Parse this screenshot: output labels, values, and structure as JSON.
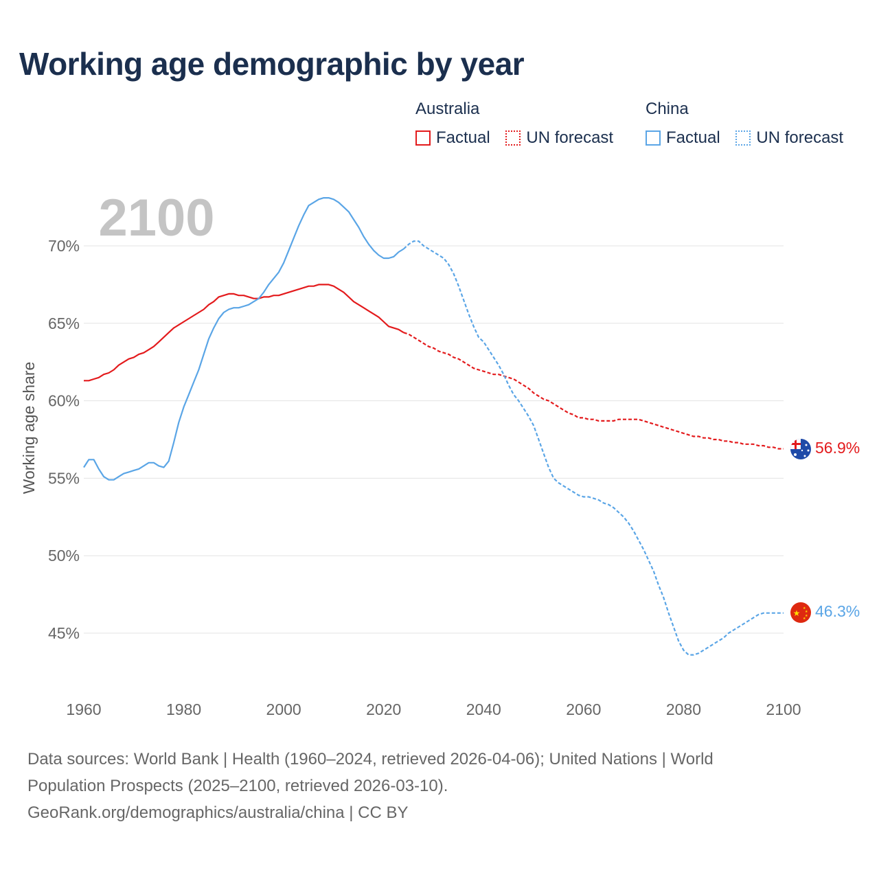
{
  "title": "Working age demographic by year",
  "legend": {
    "groups": [
      {
        "name": "Australia",
        "factual_label": "Factual",
        "forecast_label": "UN forecast",
        "color": "#e31a1c"
      },
      {
        "name": "China",
        "factual_label": "Factual",
        "forecast_label": "UN forecast",
        "color": "#5aa5e6"
      }
    ]
  },
  "footer": {
    "line1": "Data sources: World Bank | Health (1960–2024, retrieved 2026-04-06); United Nations | World",
    "line2": "Population Prospects (2025–2100, retrieved 2026-03-10).",
    "line3": "GeoRank.org/demographics/australia/china | CC BY"
  },
  "chart_data": {
    "type": "line",
    "year_watermark": "2100",
    "ylabel": "Working age share",
    "xlabel": "",
    "xlim": [
      1960,
      2100
    ],
    "ylim": [
      41,
      73.5
    ],
    "x_ticks": [
      1960,
      1980,
      2000,
      2020,
      2040,
      2060,
      2080,
      2100
    ],
    "x_tick_labels": [
      "1960",
      "1980",
      "2000",
      "2020",
      "2040",
      "2060",
      "2080",
      "2100"
    ],
    "y_ticks": [
      45,
      50,
      55,
      60,
      65,
      70
    ],
    "y_tick_labels": [
      "45%",
      "50%",
      "55%",
      "60%",
      "65%",
      "70%"
    ],
    "grid": true,
    "series": [
      {
        "name": "Australia",
        "color": "#e31a1c",
        "end_label": "56.9%",
        "flag": "australia-flag",
        "factual": {
          "x": [
            1960,
            1961,
            1962,
            1963,
            1964,
            1965,
            1966,
            1967,
            1968,
            1969,
            1970,
            1971,
            1972,
            1973,
            1974,
            1975,
            1976,
            1977,
            1978,
            1979,
            1980,
            1981,
            1982,
            1983,
            1984,
            1985,
            1986,
            1987,
            1988,
            1989,
            1990,
            1991,
            1992,
            1993,
            1994,
            1995,
            1996,
            1997,
            1998,
            1999,
            2000,
            2001,
            2002,
            2003,
            2004,
            2005,
            2006,
            2007,
            2008,
            2009,
            2010,
            2011,
            2012,
            2013,
            2014,
            2015,
            2016,
            2017,
            2018,
            2019,
            2020,
            2021,
            2022,
            2023,
            2024
          ],
          "y": [
            61.3,
            61.3,
            61.4,
            61.5,
            61.7,
            61.8,
            62.0,
            62.3,
            62.5,
            62.7,
            62.8,
            63.0,
            63.1,
            63.3,
            63.5,
            63.8,
            64.1,
            64.4,
            64.7,
            64.9,
            65.1,
            65.3,
            65.5,
            65.7,
            65.9,
            66.2,
            66.4,
            66.7,
            66.8,
            66.9,
            66.9,
            66.8,
            66.8,
            66.7,
            66.6,
            66.6,
            66.7,
            66.7,
            66.8,
            66.8,
            66.9,
            67.0,
            67.1,
            67.2,
            67.3,
            67.4,
            67.4,
            67.5,
            67.5,
            67.5,
            67.4,
            67.2,
            67.0,
            66.7,
            66.4,
            66.2,
            66.0,
            65.8,
            65.6,
            65.4,
            65.1,
            64.8,
            64.7,
            64.6,
            64.4
          ]
        },
        "forecast": {
          "x": [
            2024,
            2025,
            2026,
            2027,
            2028,
            2029,
            2030,
            2031,
            2032,
            2033,
            2034,
            2035,
            2036,
            2037,
            2038,
            2039,
            2040,
            2041,
            2042,
            2043,
            2044,
            2045,
            2046,
            2047,
            2048,
            2049,
            2050,
            2051,
            2052,
            2053,
            2054,
            2055,
            2056,
            2057,
            2058,
            2059,
            2060,
            2061,
            2062,
            2063,
            2064,
            2065,
            2066,
            2067,
            2068,
            2069,
            2070,
            2071,
            2072,
            2073,
            2074,
            2075,
            2076,
            2077,
            2078,
            2079,
            2080,
            2081,
            2082,
            2083,
            2084,
            2085,
            2086,
            2087,
            2088,
            2089,
            2090,
            2091,
            2092,
            2093,
            2094,
            2095,
            2096,
            2097,
            2098,
            2099,
            2100
          ],
          "y": [
            64.4,
            64.3,
            64.1,
            63.9,
            63.7,
            63.5,
            63.4,
            63.2,
            63.1,
            63.0,
            62.8,
            62.7,
            62.5,
            62.3,
            62.1,
            62.0,
            61.9,
            61.8,
            61.7,
            61.7,
            61.6,
            61.5,
            61.4,
            61.2,
            61.0,
            60.8,
            60.5,
            60.3,
            60.1,
            60.0,
            59.8,
            59.6,
            59.4,
            59.2,
            59.1,
            58.9,
            58.9,
            58.8,
            58.8,
            58.7,
            58.7,
            58.7,
            58.7,
            58.8,
            58.8,
            58.8,
            58.8,
            58.8,
            58.7,
            58.6,
            58.5,
            58.4,
            58.3,
            58.2,
            58.1,
            58.0,
            57.9,
            57.8,
            57.7,
            57.7,
            57.6,
            57.6,
            57.5,
            57.5,
            57.4,
            57.4,
            57.3,
            57.3,
            57.2,
            57.2,
            57.2,
            57.1,
            57.1,
            57.0,
            57.0,
            56.9,
            56.9
          ]
        }
      },
      {
        "name": "China",
        "color": "#5aa5e6",
        "end_label": "46.3%",
        "flag": "china-flag",
        "factual": {
          "x": [
            1960,
            1961,
            1962,
            1963,
            1964,
            1965,
            1966,
            1967,
            1968,
            1969,
            1970,
            1971,
            1972,
            1973,
            1974,
            1975,
            1976,
            1977,
            1978,
            1979,
            1980,
            1981,
            1982,
            1983,
            1984,
            1985,
            1986,
            1987,
            1988,
            1989,
            1990,
            1991,
            1992,
            1993,
            1994,
            1995,
            1996,
            1997,
            1998,
            1999,
            2000,
            2001,
            2002,
            2003,
            2004,
            2005,
            2006,
            2007,
            2008,
            2009,
            2010,
            2011,
            2012,
            2013,
            2014,
            2015,
            2016,
            2017,
            2018,
            2019,
            2020,
            2021,
            2022,
            2023,
            2024
          ],
          "y": [
            55.7,
            56.2,
            56.2,
            55.6,
            55.1,
            54.9,
            54.9,
            55.1,
            55.3,
            55.4,
            55.5,
            55.6,
            55.8,
            56.0,
            56.0,
            55.8,
            55.7,
            56.1,
            57.3,
            58.6,
            59.6,
            60.4,
            61.2,
            62.0,
            63.0,
            64.0,
            64.7,
            65.3,
            65.7,
            65.9,
            66.0,
            66.0,
            66.1,
            66.2,
            66.4,
            66.6,
            67.0,
            67.5,
            67.9,
            68.3,
            68.9,
            69.7,
            70.5,
            71.3,
            72.0,
            72.6,
            72.8,
            73.0,
            73.1,
            73.1,
            73.0,
            72.8,
            72.5,
            72.2,
            71.7,
            71.2,
            70.6,
            70.1,
            69.7,
            69.4,
            69.2,
            69.2,
            69.3,
            69.6,
            69.8
          ]
        },
        "forecast": {
          "x": [
            2024,
            2025,
            2026,
            2027,
            2028,
            2029,
            2030,
            2031,
            2032,
            2033,
            2034,
            2035,
            2036,
            2037,
            2038,
            2039,
            2040,
            2041,
            2042,
            2043,
            2044,
            2045,
            2046,
            2047,
            2048,
            2049,
            2050,
            2051,
            2052,
            2053,
            2054,
            2055,
            2056,
            2057,
            2058,
            2059,
            2060,
            2061,
            2062,
            2063,
            2064,
            2065,
            2066,
            2067,
            2068,
            2069,
            2070,
            2071,
            2072,
            2073,
            2074,
            2075,
            2076,
            2077,
            2078,
            2079,
            2080,
            2081,
            2082,
            2083,
            2084,
            2085,
            2086,
            2087,
            2088,
            2089,
            2090,
            2091,
            2092,
            2093,
            2094,
            2095,
            2096,
            2097,
            2098,
            2099,
            2100
          ],
          "y": [
            69.8,
            70.1,
            70.3,
            70.3,
            70.0,
            69.8,
            69.6,
            69.4,
            69.2,
            68.8,
            68.2,
            67.4,
            66.5,
            65.6,
            64.8,
            64.1,
            63.8,
            63.3,
            62.8,
            62.3,
            61.7,
            61.0,
            60.4,
            60.0,
            59.5,
            59.0,
            58.4,
            57.5,
            56.6,
            55.7,
            55.0,
            54.7,
            54.5,
            54.3,
            54.1,
            53.9,
            53.8,
            53.8,
            53.7,
            53.6,
            53.4,
            53.3,
            53.1,
            52.8,
            52.5,
            52.1,
            51.6,
            51.0,
            50.4,
            49.7,
            49.0,
            48.1,
            47.3,
            46.3,
            45.4,
            44.5,
            43.9,
            43.6,
            43.6,
            43.7,
            43.9,
            44.1,
            44.3,
            44.5,
            44.7,
            45.0,
            45.2,
            45.4,
            45.6,
            45.8,
            46.0,
            46.2,
            46.3,
            46.3,
            46.3,
            46.3,
            46.3
          ]
        }
      }
    ]
  }
}
